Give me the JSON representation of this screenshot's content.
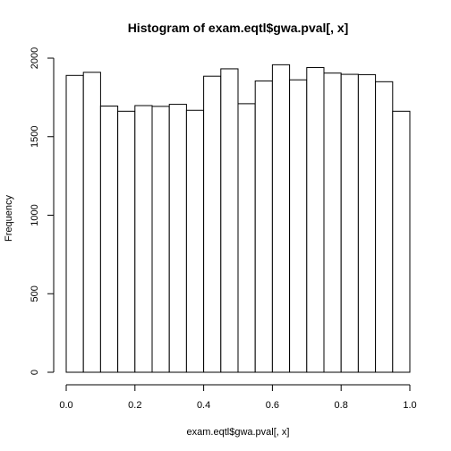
{
  "chart_data": {
    "type": "bar",
    "title": "Histogram of exam.eqtl$gwa.pval[, x]",
    "xlabel": "exam.eqtl$gwa.pval[, x]",
    "ylabel": "Frequency",
    "xlim": [
      0,
      1
    ],
    "ylim": [
      0,
      2000
    ],
    "x_ticks": [
      "0.0",
      "0.2",
      "0.4",
      "0.6",
      "0.8",
      "1.0"
    ],
    "y_ticks": [
      "0",
      "500",
      "1000",
      "1500",
      "2000"
    ],
    "bin_edges": [
      0.0,
      0.05,
      0.1,
      0.15,
      0.2,
      0.25,
      0.3,
      0.35,
      0.4,
      0.45,
      0.5,
      0.55,
      0.6,
      0.65,
      0.7,
      0.75,
      0.8,
      0.85,
      0.9,
      0.95,
      1.0
    ],
    "values": [
      1890,
      1910,
      1695,
      1662,
      1698,
      1693,
      1706,
      1668,
      1885,
      1932,
      1710,
      1855,
      1958,
      1862,
      1940,
      1905,
      1897,
      1895,
      1850,
      1662
    ],
    "grid": false,
    "legend": "none"
  }
}
